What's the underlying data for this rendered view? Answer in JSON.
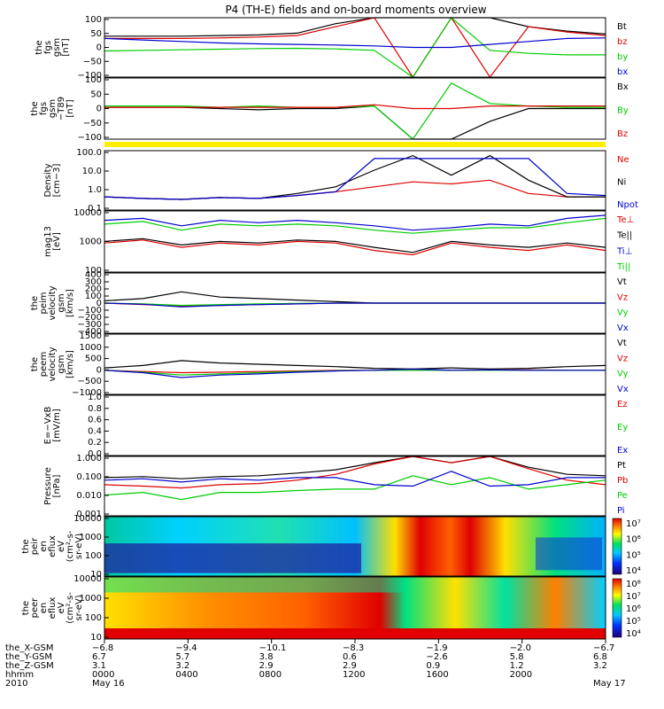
{
  "title": "P4 (TH-E) fields and on-board moments overview",
  "chart_data": [
    {
      "type": "line",
      "panel": "fgs-gsm",
      "ylabel": [
        "the",
        "fgs",
        "gsm",
        "[nT]"
      ],
      "yticks": [
        "100",
        "50",
        "0",
        "−50",
        "−100"
      ],
      "ylim": [
        -100,
        100
      ],
      "series": [
        {
          "name": "Bt",
          "color": "#000000",
          "values": [
            38,
            38,
            38,
            40,
            42,
            48,
            80,
            100,
            100,
            100,
            100,
            70,
            55,
            45
          ]
        },
        {
          "name": "bz",
          "color": "#dd0000",
          "values": [
            30,
            30,
            30,
            32,
            35,
            40,
            70,
            100,
            -100,
            100,
            -100,
            70,
            52,
            40
          ]
        },
        {
          "name": "by",
          "color": "#00cc00",
          "values": [
            -12,
            -10,
            -8,
            -6,
            -4,
            -3,
            -5,
            -10,
            -100,
            100,
            -10,
            -20,
            -25,
            -25
          ]
        },
        {
          "name": "bx",
          "color": "#0000cc",
          "values": [
            30,
            25,
            20,
            15,
            12,
            10,
            8,
            5,
            0,
            0,
            10,
            20,
            30,
            32
          ]
        }
      ]
    },
    {
      "type": "line",
      "panel": "fgs-gsm-T89",
      "ylabel": [
        "the",
        "fgs",
        "gsm",
        "−T89",
        "[nT]"
      ],
      "yticks": [
        "100",
        "50",
        "0",
        "−50",
        "−100"
      ],
      "ylim": [
        -120,
        120
      ],
      "series": [
        {
          "name": "Bx",
          "color": "#000000",
          "values": [
            5,
            5,
            5,
            0,
            -5,
            0,
            0,
            10,
            -120,
            -120,
            -50,
            0,
            0,
            0
          ]
        },
        {
          "name": "By",
          "color": "#00cc00",
          "values": [
            10,
            10,
            10,
            5,
            10,
            5,
            5,
            10,
            -120,
            100,
            20,
            10,
            5,
            5
          ]
        },
        {
          "name": "Bz",
          "color": "#dd0000",
          "values": [
            5,
            5,
            5,
            5,
            5,
            5,
            5,
            15,
            0,
            0,
            10,
            10,
            10,
            10
          ]
        }
      ]
    },
    {
      "type": "line",
      "panel": "density",
      "ylabel": [
        "Density",
        "[cm−3]"
      ],
      "yticks": [
        "100.0",
        "10.0",
        "1.0",
        "0.1"
      ],
      "ylim": [
        0.08,
        300
      ],
      "scale": "log",
      "series": [
        {
          "name": "Ne",
          "color": "#dd0000",
          "values": [
            0.5,
            0.4,
            0.35,
            0.45,
            0.4,
            0.6,
            1.0,
            2.0,
            4.0,
            3.0,
            5.0,
            0.8,
            0.5,
            0.5
          ]
        },
        {
          "name": "Ni",
          "color": "#000000",
          "values": [
            0.5,
            0.4,
            0.35,
            0.45,
            0.4,
            0.8,
            2.0,
            20,
            150,
            10,
            150,
            5,
            0.5,
            0.5
          ]
        },
        {
          "name": "Npot",
          "color": "#0000cc",
          "values": [
            0.5,
            0.4,
            0.35,
            0.45,
            0.4,
            0.6,
            1.0,
            100,
            100,
            100,
            100,
            100,
            0.8,
            0.6
          ]
        }
      ]
    },
    {
      "type": "line",
      "panel": "temperature",
      "ylabel": [
        "mag13",
        "[eV]"
      ],
      "yticks": [
        "10000",
        "1000",
        "100"
      ],
      "ylim": [
        40,
        12000
      ],
      "scale": "log",
      "series": [
        {
          "name": "Te⊥",
          "color": "#dd0000",
          "values": [
            600,
            800,
            400,
            600,
            500,
            700,
            600,
            300,
            200,
            600,
            400,
            300,
            500,
            300
          ]
        },
        {
          "name": "Te||",
          "color": "#000000",
          "values": [
            700,
            900,
            500,
            700,
            600,
            800,
            700,
            400,
            250,
            700,
            500,
            400,
            600,
            400
          ]
        },
        {
          "name": "Ti⊥",
          "color": "#0000cc",
          "values": [
            5000,
            6000,
            3000,
            5000,
            4000,
            5000,
            4000,
            3000,
            2000,
            2500,
            3500,
            3000,
            6000,
            8000
          ]
        },
        {
          "name": "Ti||",
          "color": "#00cc00",
          "values": [
            3500,
            4500,
            2000,
            3500,
            3000,
            3500,
            3000,
            2000,
            1500,
            2000,
            2500,
            2500,
            4000,
            6000
          ]
        }
      ]
    },
    {
      "type": "line",
      "panel": "peim-velocity",
      "ylabel": [
        "the",
        "peim",
        "velocity",
        "gsm",
        "[km/s]"
      ],
      "yticks": [
        "400",
        "300",
        "200",
        "100",
        "0",
        "−100",
        "−200",
        "−300",
        "−400"
      ],
      "ylim": [
        -400,
        400
      ],
      "series": [
        {
          "name": "Vt",
          "color": "#000000",
          "values": [
            30,
            60,
            150,
            80,
            60,
            40,
            20,
            0,
            0,
            0,
            0,
            0,
            0,
            0
          ]
        },
        {
          "name": "Vz",
          "color": "#dd0000",
          "values": [
            0,
            -20,
            -40,
            -30,
            -20,
            -10,
            0,
            0,
            0,
            0,
            0,
            0,
            0,
            0
          ]
        },
        {
          "name": "Vy",
          "color": "#00cc00",
          "values": [
            0,
            -10,
            -30,
            -20,
            -10,
            -5,
            0,
            0,
            0,
            0,
            0,
            0,
            0,
            0
          ]
        },
        {
          "name": "Vx",
          "color": "#0000cc",
          "values": [
            0,
            -15,
            -50,
            -30,
            -20,
            -10,
            0,
            0,
            0,
            0,
            0,
            0,
            0,
            0
          ]
        }
      ]
    },
    {
      "type": "line",
      "panel": "peem-velocity",
      "ylabel": [
        "the",
        "peem",
        "velocity",
        "gsm",
        "[km/s]"
      ],
      "yticks": [
        "1500",
        "1000",
        "500",
        "0",
        "−500",
        "−1000"
      ],
      "ylim": [
        -1000,
        1500
      ],
      "series": [
        {
          "name": "Vt",
          "color": "#000000",
          "values": [
            100,
            200,
            400,
            300,
            250,
            200,
            150,
            80,
            50,
            100,
            50,
            80,
            150,
            200
          ]
        },
        {
          "name": "Vz",
          "color": "#dd0000",
          "values": [
            0,
            -50,
            -100,
            -80,
            -50,
            -30,
            0,
            0,
            30,
            0,
            10,
            20,
            0,
            0
          ]
        },
        {
          "name": "Vy",
          "color": "#00cc00",
          "values": [
            0,
            -80,
            -200,
            -150,
            -100,
            -50,
            -20,
            0,
            0,
            0,
            0,
            0,
            0,
            0
          ]
        },
        {
          "name": "Vx",
          "color": "#0000cc",
          "values": [
            0,
            -100,
            -300,
            -200,
            -150,
            -80,
            -30,
            0,
            50,
            0,
            20,
            0,
            0,
            0
          ]
        }
      ]
    },
    {
      "type": "line",
      "panel": "e-field",
      "ylabel": [
        "E=−VxB",
        "[mV/m]"
      ],
      "yticks": [
        "1.0",
        "0.8",
        "0.6",
        "0.4",
        "0.2",
        "0.0"
      ],
      "ylim": [
        0,
        1
      ],
      "series": [
        {
          "name": "Ez",
          "color": "#dd0000",
          "values": []
        },
        {
          "name": "Ey",
          "color": "#00cc00",
          "values": []
        },
        {
          "name": "Ex",
          "color": "#0000cc",
          "values": []
        }
      ]
    },
    {
      "type": "line",
      "panel": "pressure",
      "ylabel": [
        "Pressure",
        "[nPa]"
      ],
      "yticks": [
        "1.000",
        "0.100",
        "0.010",
        "0.001"
      ],
      "ylim": [
        0.0008,
        8
      ],
      "scale": "log",
      "series": [
        {
          "name": "Pt",
          "color": "#000000",
          "values": [
            0.3,
            0.35,
            0.25,
            0.35,
            0.4,
            0.6,
            1.0,
            3.0,
            8.0,
            3.0,
            8.0,
            1.5,
            0.5,
            0.4
          ]
        },
        {
          "name": "Pb",
          "color": "#dd0000",
          "values": [
            0.1,
            0.08,
            0.06,
            0.1,
            0.12,
            0.2,
            0.5,
            2.5,
            8.0,
            3.0,
            8.0,
            1.2,
            0.2,
            0.1
          ]
        },
        {
          "name": "Pe",
          "color": "#00cc00",
          "values": [
            0.02,
            0.03,
            0.01,
            0.03,
            0.03,
            0.04,
            0.05,
            0.05,
            0.4,
            0.1,
            0.3,
            0.05,
            0.1,
            0.2
          ]
        },
        {
          "name": "Pi",
          "color": "#0000cc",
          "values": [
            0.2,
            0.25,
            0.15,
            0.25,
            0.2,
            0.3,
            0.3,
            0.1,
            0.08,
            0.8,
            0.08,
            0.1,
            0.3,
            0.3
          ]
        }
      ]
    },
    {
      "type": "heatmap",
      "panel": "peir-eflux",
      "ylabel": [
        "the",
        "peir",
        "en",
        "eflux",
        "eV",
        "(cm²-s-",
        "sr-eV)"
      ],
      "yticks": [
        "10000",
        "1000",
        "100",
        "10"
      ],
      "colorbar_ticks": [
        "10⁷",
        "10⁶",
        "10⁵",
        "10⁴"
      ]
    },
    {
      "type": "heatmap",
      "panel": "peer-eflux",
      "ylabel": [
        "the",
        "peer",
        "en",
        "eflux",
        "eV",
        "(cm²-s-",
        "sr-eV)"
      ],
      "yticks": [
        "10000",
        "1000",
        "100",
        "10"
      ],
      "colorbar_ticks": [
        "10⁸",
        "10⁷",
        "10⁶",
        "10⁵",
        "10⁴"
      ]
    }
  ],
  "xaxis": {
    "row_labels": [
      "the_X-GSM",
      "the_Y-GSM",
      "the_Z-GSM",
      "hhmm",
      "2010"
    ],
    "columns": [
      [
        "−6.8",
        "6.7",
        "3.1",
        "0000",
        "May 16"
      ],
      [
        "−9.4",
        "5.7",
        "3.2",
        "0400",
        ""
      ],
      [
        "−10.1",
        "3.8",
        "2.9",
        "0800",
        ""
      ],
      [
        "−8.3",
        "0.6",
        "2.9",
        "1200",
        ""
      ],
      [
        "−1.9",
        "−2.6",
        "0.9",
        "1600",
        ""
      ],
      [
        "−2.0",
        "5.8",
        "1.2",
        "2000",
        ""
      ],
      [
        "−6.7",
        "6.8",
        "3.2",
        "",
        "May 17"
      ]
    ]
  }
}
